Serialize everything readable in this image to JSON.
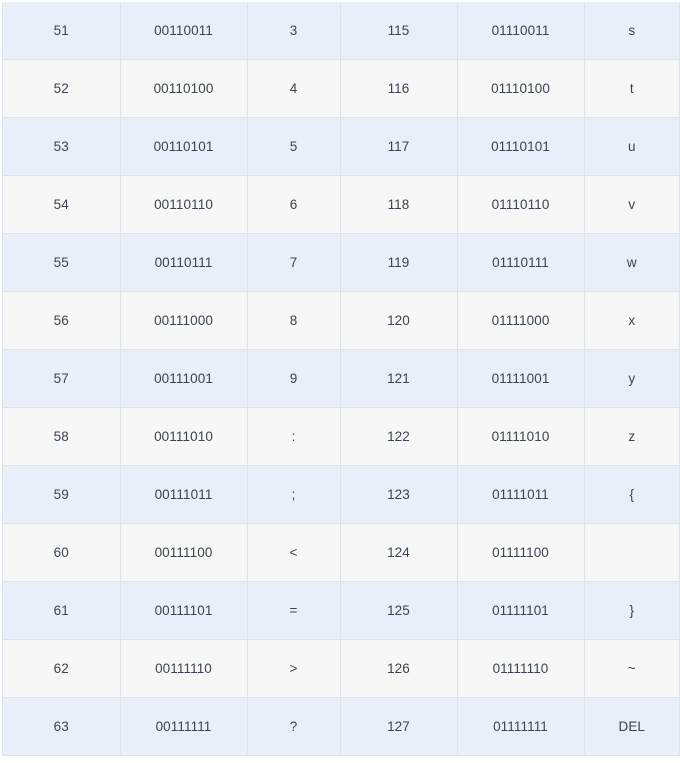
{
  "table": {
    "rows": [
      {
        "dec": "51",
        "bin": "00110011",
        "char": "3",
        "dec2": "115",
        "bin2": "01110011",
        "char2": "s"
      },
      {
        "dec": "52",
        "bin": "00110100",
        "char": "4",
        "dec2": "116",
        "bin2": "01110100",
        "char2": "t"
      },
      {
        "dec": "53",
        "bin": "00110101",
        "char": "5",
        "dec2": "117",
        "bin2": "01110101",
        "char2": "u"
      },
      {
        "dec": "54",
        "bin": "00110110",
        "char": "6",
        "dec2": "118",
        "bin2": "01110110",
        "char2": "v"
      },
      {
        "dec": "55",
        "bin": "00110111",
        "char": "7",
        "dec2": "119",
        "bin2": "01110111",
        "char2": "w"
      },
      {
        "dec": "56",
        "bin": "00111000",
        "char": "8",
        "dec2": "120",
        "bin2": "01111000",
        "char2": "x"
      },
      {
        "dec": "57",
        "bin": "00111001",
        "char": "9",
        "dec2": "121",
        "bin2": "01111001",
        "char2": "y"
      },
      {
        "dec": "58",
        "bin": "00111010",
        "char": ":",
        "dec2": "122",
        "bin2": "01111010",
        "char2": "z"
      },
      {
        "dec": "59",
        "bin": "00111011",
        "char": ";",
        "dec2": "123",
        "bin2": "01111011",
        "char2": "{"
      },
      {
        "dec": "60",
        "bin": "00111100",
        "char": "<",
        "dec2": "124",
        "bin2": "01111100",
        "char2": ""
      },
      {
        "dec": "61",
        "bin": "00111101",
        "char": "=",
        "dec2": "125",
        "bin2": "01111101",
        "char2": "}"
      },
      {
        "dec": "62",
        "bin": "00111110",
        "char": ">",
        "dec2": "126",
        "bin2": "01111110",
        "char2": "~"
      },
      {
        "dec": "63",
        "bin": "00111111",
        "char": "?",
        "dec2": "127",
        "bin2": "01111111",
        "char2": "DEL"
      }
    ]
  }
}
